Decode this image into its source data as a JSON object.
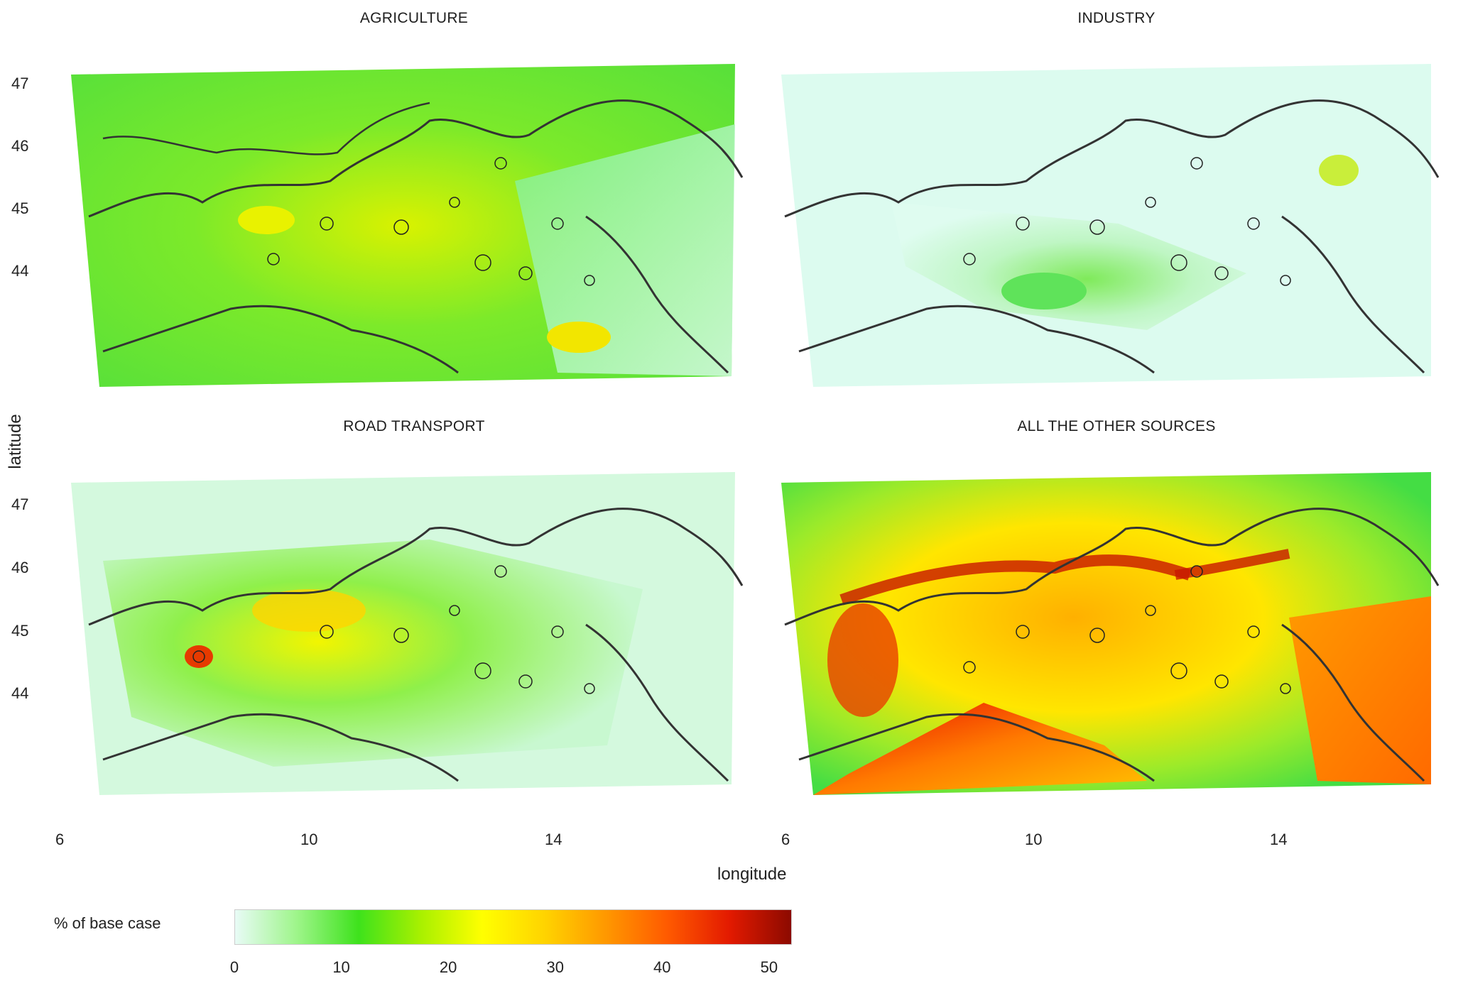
{
  "axes": {
    "ylabel": "latitude",
    "xlabel": "longitude",
    "lat_ticks": [
      "47",
      "46",
      "45",
      "44"
    ],
    "lon_ticks": [
      "6",
      "10",
      "14"
    ]
  },
  "panels": [
    {
      "id": "agriculture",
      "title": "AGRICULTURE",
      "fill": "agri"
    },
    {
      "id": "industry",
      "title": "INDUSTRY",
      "fill": "ind"
    },
    {
      "id": "road",
      "title": "ROAD TRANSPORT",
      "fill": "road"
    },
    {
      "id": "other",
      "title": "ALL THE OTHER SOURCES",
      "fill": "other"
    }
  ],
  "legend": {
    "title": "% of base case",
    "ticks": [
      "0",
      "10",
      "20",
      "30",
      "40",
      "50"
    ],
    "range": [
      0,
      52
    ],
    "colors": [
      "#e8fbf6",
      "#9ef58a",
      "#3ee21c",
      "#a8f000",
      "#ffff00",
      "#ffd400",
      "#ff9800",
      "#ff5a00",
      "#e31a00",
      "#8c0a00"
    ]
  }
}
